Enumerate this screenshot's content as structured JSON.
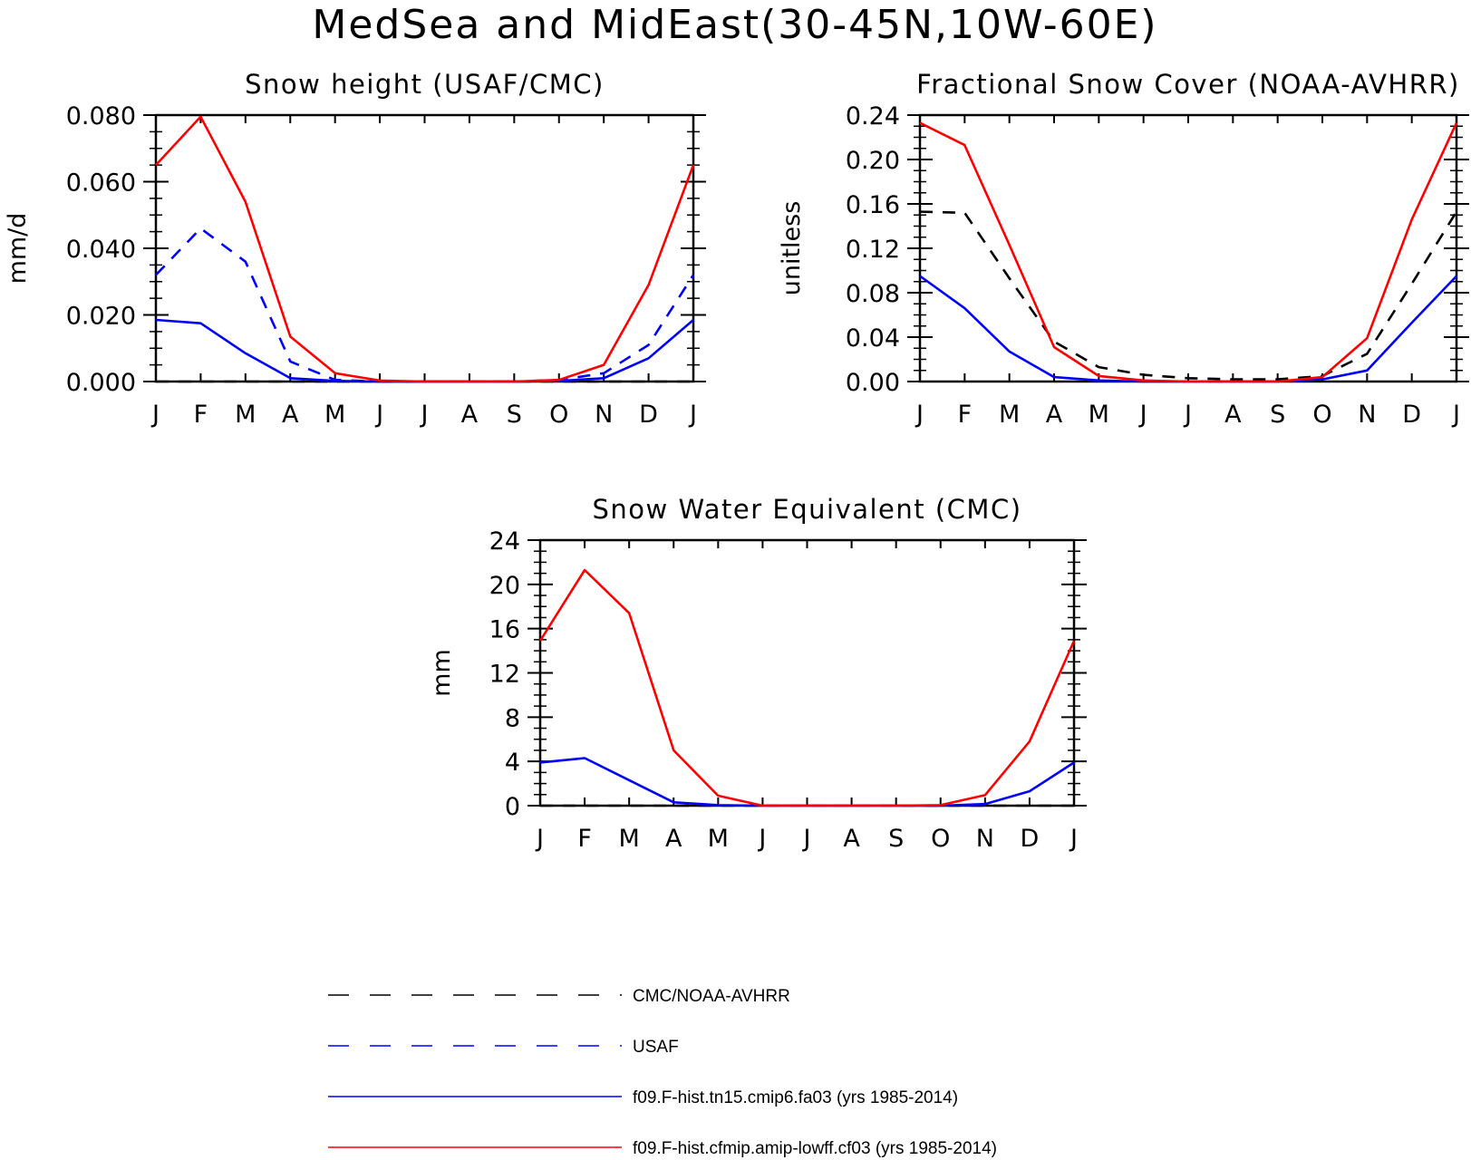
{
  "figure": {
    "title": "MedSea and MidEast(30-45N,10W-60E)"
  },
  "legend": [
    {
      "label": "CMC/NOAA-AVHRR",
      "color": "#000000",
      "dash": true
    },
    {
      "label": "USAF",
      "color": "#0000ff",
      "dash": true
    },
    {
      "label": "f09.F-hist.tn15.cmip6.fa03 (yrs 1985-2014)",
      "color": "#0000ff",
      "dash": false
    },
    {
      "label": "f09.F-hist.cfmip.amip-lowff.cf03 (yrs 1985-2014)",
      "color": "#ff0000",
      "dash": false
    }
  ],
  "chart_data": [
    {
      "type": "line",
      "title": "Snow height (USAF/CMC)",
      "ylabel": "mm/d",
      "categories": [
        "J",
        "F",
        "M",
        "A",
        "M",
        "J",
        "J",
        "A",
        "S",
        "O",
        "N",
        "D",
        "J"
      ],
      "ylim": [
        0,
        0.08
      ],
      "yticks": [
        "0.000",
        "0.020",
        "0.040",
        "0.060",
        "0.080"
      ],
      "series": [
        {
          "name": "CMC/NOAA-AVHRR",
          "color": "#000000",
          "dash": true,
          "values": [
            0,
            0,
            0,
            0,
            0,
            0,
            0,
            0,
            0,
            0,
            0,
            0,
            0
          ]
        },
        {
          "name": "USAF",
          "color": "#0000ff",
          "dash": true,
          "values": [
            0.032,
            0.046,
            0.036,
            0.006,
            0.0005,
            0,
            0,
            0,
            0,
            0.0005,
            0.0025,
            0.011,
            0.032
          ]
        },
        {
          "name": "f09.F-hist.tn15.cmip6.fa03 (yrs 1985-2014)",
          "color": "#0000ff",
          "dash": false,
          "values": [
            0.0185,
            0.0175,
            0.0085,
            0.001,
            0.0002,
            0,
            0,
            0,
            0,
            0.0002,
            0.001,
            0.007,
            0.0185
          ]
        },
        {
          "name": "f09.F-hist.cfmip.amip-lowff.cf03 (yrs 1985-2014)",
          "color": "#ff0000",
          "dash": false,
          "values": [
            0.065,
            0.0795,
            0.054,
            0.0135,
            0.0025,
            0.0003,
            0,
            0,
            0,
            0.0005,
            0.005,
            0.029,
            0.065
          ]
        }
      ]
    },
    {
      "type": "line",
      "title": "Fractional Snow Cover (NOAA-AVHRR)",
      "ylabel": "unitless",
      "categories": [
        "J",
        "F",
        "M",
        "A",
        "M",
        "J",
        "J",
        "A",
        "S",
        "O",
        "N",
        "D",
        "J"
      ],
      "ylim": [
        0,
        0.24
      ],
      "yticks": [
        "0.00",
        "0.04",
        "0.08",
        "0.12",
        "0.16",
        "0.20",
        "0.24"
      ],
      "series": [
        {
          "name": "CMC/NOAA-AVHRR",
          "color": "#000000",
          "dash": true,
          "values": [
            0.153,
            0.152,
            0.093,
            0.036,
            0.013,
            0.006,
            0.003,
            0.002,
            0.002,
            0.005,
            0.025,
            0.088,
            0.153
          ]
        },
        {
          "name": "f09.F-hist.tn15.cmip6.fa03 (yrs 1985-2014)",
          "color": "#0000ff",
          "dash": false,
          "values": [
            0.095,
            0.066,
            0.027,
            0.004,
            0.001,
            0,
            0,
            0,
            0,
            0.002,
            0.01,
            0.053,
            0.095
          ]
        },
        {
          "name": "f09.F-hist.cfmip.amip-lowff.cf03 (yrs 1985-2014)",
          "color": "#ff0000",
          "dash": false,
          "values": [
            0.233,
            0.213,
            0.123,
            0.031,
            0.005,
            0.001,
            0,
            0,
            0,
            0.004,
            0.039,
            0.146,
            0.233
          ]
        }
      ]
    },
    {
      "type": "line",
      "title": "Snow Water Equivalent (CMC)",
      "ylabel": "mm",
      "categories": [
        "J",
        "F",
        "M",
        "A",
        "M",
        "J",
        "J",
        "A",
        "S",
        "O",
        "N",
        "D",
        "J"
      ],
      "ylim": [
        0,
        24
      ],
      "yticks": [
        "0",
        "4",
        "8",
        "12",
        "16",
        "20",
        "24"
      ],
      "series": [
        {
          "name": "CMC/NOAA-AVHRR",
          "color": "#000000",
          "dash": true,
          "values": [
            0,
            0,
            0,
            0,
            0,
            0,
            0,
            0,
            0,
            0,
            0,
            0,
            0
          ]
        },
        {
          "name": "f09.F-hist.tn15.cmip6.fa03 (yrs 1985-2014)",
          "color": "#0000ff",
          "dash": false,
          "values": [
            3.9,
            4.3,
            2.3,
            0.3,
            0.05,
            0,
            0,
            0,
            0,
            0,
            0.15,
            1.3,
            3.9
          ]
        },
        {
          "name": "f09.F-hist.cfmip.amip-lowff.cf03 (yrs 1985-2014)",
          "color": "#ff0000",
          "dash": false,
          "values": [
            14.9,
            21.3,
            17.4,
            5.0,
            0.9,
            0,
            0,
            0,
            0,
            0.05,
            0.95,
            5.8,
            14.9
          ]
        }
      ]
    }
  ]
}
